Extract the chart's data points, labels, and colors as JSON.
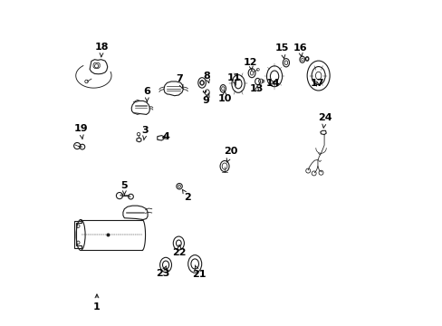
{
  "bg_color": "#ffffff",
  "line_color": "#1a1a1a",
  "label_color": "#000000",
  "fig_width": 4.89,
  "fig_height": 3.6,
  "dpi": 100,
  "labels": {
    "1": [
      0.115,
      0.055,
      0.115,
      0.105
    ],
    "2": [
      0.395,
      0.395,
      0.378,
      0.42
    ],
    "3": [
      0.265,
      0.6,
      0.26,
      0.57
    ],
    "4": [
      0.33,
      0.58,
      0.315,
      0.578
    ],
    "5": [
      0.2,
      0.43,
      0.2,
      0.4
    ],
    "6": [
      0.27,
      0.72,
      0.27,
      0.688
    ],
    "7": [
      0.37,
      0.76,
      0.38,
      0.728
    ],
    "8": [
      0.455,
      0.77,
      0.462,
      0.745
    ],
    "9": [
      0.453,
      0.692,
      0.462,
      0.718
    ],
    "10": [
      0.51,
      0.698,
      0.51,
      0.725
    ],
    "11": [
      0.538,
      0.762,
      0.545,
      0.74
    ],
    "12": [
      0.59,
      0.81,
      0.594,
      0.785
    ],
    "13": [
      0.61,
      0.73,
      0.612,
      0.748
    ],
    "14": [
      0.66,
      0.745,
      0.666,
      0.762
    ],
    "15": [
      0.688,
      0.855,
      0.694,
      0.82
    ],
    "16": [
      0.743,
      0.855,
      0.748,
      0.826
    ],
    "17": [
      0.797,
      0.745,
      0.792,
      0.76
    ],
    "18": [
      0.13,
      0.858,
      0.128,
      0.818
    ],
    "19": [
      0.065,
      0.605,
      0.072,
      0.565
    ],
    "20": [
      0.53,
      0.535,
      0.516,
      0.5
    ],
    "21": [
      0.43,
      0.155,
      0.418,
      0.185
    ],
    "22": [
      0.37,
      0.222,
      0.37,
      0.25
    ],
    "23": [
      0.318,
      0.158,
      0.33,
      0.183
    ],
    "24": [
      0.82,
      0.64,
      0.814,
      0.598
    ]
  }
}
